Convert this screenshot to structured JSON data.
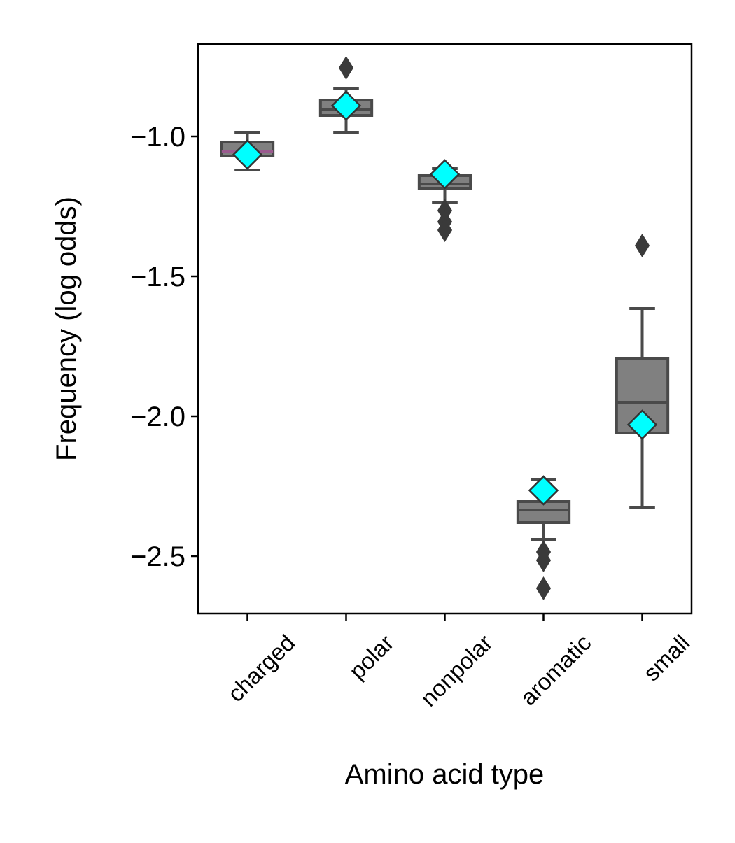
{
  "chart_data": {
    "type": "box",
    "title": "",
    "xlabel": "Amino acid type",
    "ylabel": "Frequency (log odds)",
    "ylim": [
      -2.705,
      -0.67
    ],
    "yticks": [
      {
        "value": -1.0,
        "label": "−1.0"
      },
      {
        "value": -1.5,
        "label": "−1.5"
      },
      {
        "value": -2.0,
        "label": "−2.0"
      },
      {
        "value": -2.5,
        "label": "−2.5"
      }
    ],
    "categories": [
      "charged",
      "polar",
      "nonpolar",
      "aromatic",
      "small"
    ],
    "grid": false,
    "legend": "none",
    "colors": {
      "box_fill": "#808080",
      "box_edge": "#4a4a4a",
      "charged_median": "#9a5a8e",
      "mean_marker": "#00ffff",
      "outlier": "#3a3a3a"
    },
    "boxes": [
      {
        "category": "charged",
        "whisker_low": -1.12,
        "q1": -1.07,
        "median": -1.055,
        "q3": -1.02,
        "whisker_high": -0.985,
        "mean": -1.065,
        "outliers": []
      },
      {
        "category": "polar",
        "whisker_low": -0.985,
        "q1": -0.925,
        "median": -0.905,
        "q3": -0.87,
        "whisker_high": -0.83,
        "mean": -0.89,
        "outliers": [
          -0.755
        ]
      },
      {
        "category": "nonpolar",
        "whisker_low": -1.235,
        "q1": -1.185,
        "median": -1.17,
        "q3": -1.14,
        "whisker_high": -1.115,
        "mean": -1.135,
        "outliers": [
          -1.265,
          -1.305,
          -1.335
        ]
      },
      {
        "category": "aromatic",
        "whisker_low": -2.44,
        "q1": -2.38,
        "median": -2.335,
        "q3": -2.305,
        "whisker_high": -2.225,
        "mean": -2.265,
        "outliers": [
          -2.485,
          -2.515,
          -2.615
        ]
      },
      {
        "category": "small",
        "whisker_low": -2.325,
        "q1": -2.06,
        "median": -1.95,
        "q3": -1.795,
        "whisker_high": -1.615,
        "mean": -2.03,
        "outliers": [
          -1.39
        ]
      }
    ]
  }
}
